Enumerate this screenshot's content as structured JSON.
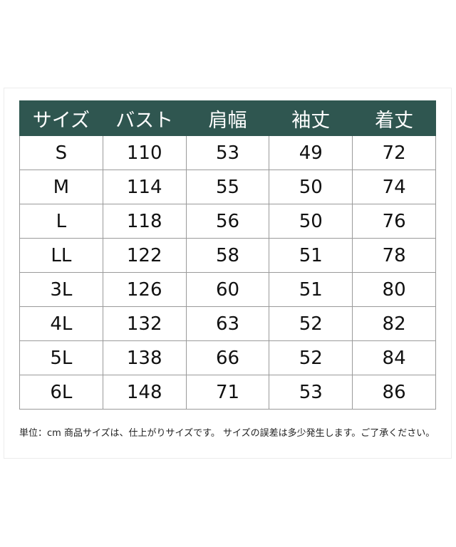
{
  "table": {
    "headers": [
      "サイズ",
      "バスト",
      "肩幅",
      "袖丈",
      "着丈"
    ],
    "rows": [
      [
        "S",
        "110",
        "53",
        "49",
        "72"
      ],
      [
        "M",
        "114",
        "55",
        "50",
        "74"
      ],
      [
        "L",
        "118",
        "56",
        "50",
        "76"
      ],
      [
        "LL",
        "122",
        "58",
        "51",
        "78"
      ],
      [
        "3L",
        "126",
        "60",
        "51",
        "80"
      ],
      [
        "4L",
        "132",
        "63",
        "52",
        "82"
      ],
      [
        "5L",
        "138",
        "66",
        "52",
        "84"
      ],
      [
        "6L",
        "148",
        "71",
        "53",
        "86"
      ]
    ]
  },
  "note": "単位：cm 商品サイズは、仕上がりサイズです。 サイズの誤差は多少発生します。ご了承ください。",
  "colors": {
    "header_bg": "#2f5650"
  }
}
